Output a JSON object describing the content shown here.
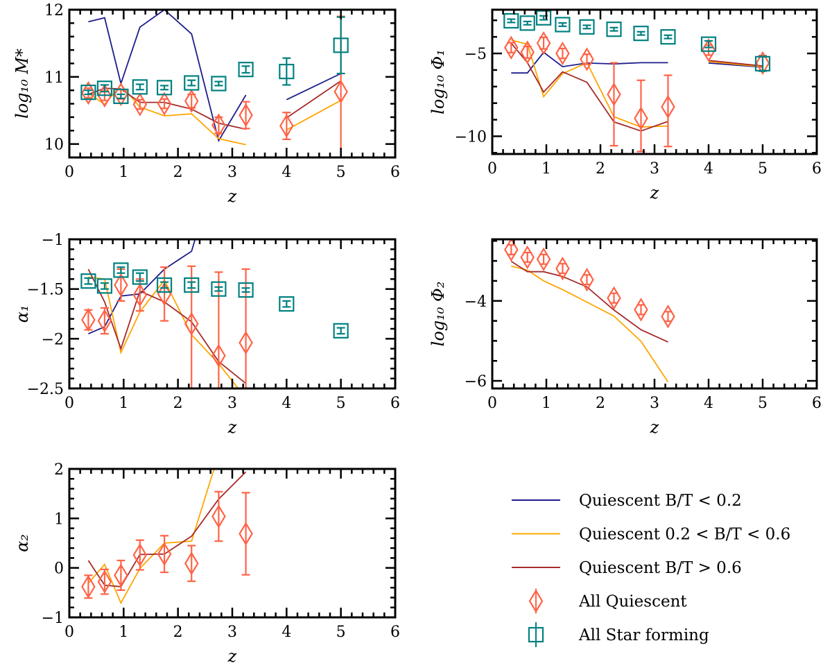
{
  "chart_data": [
    {
      "type": "line",
      "xlabel": "z",
      "ylabel": "log₁₀ M*",
      "xlim": [
        0,
        6
      ],
      "ylim": [
        9.8,
        12.0
      ],
      "xticks": [
        0,
        1,
        2,
        3,
        4,
        5,
        6
      ],
      "yticks": [
        10,
        11,
        12
      ],
      "x_minor_step": 0.2,
      "y_minor_step": 0.2,
      "lines": [
        {
          "series": "q_bt_low",
          "x": [
            0.35,
            0.65,
            0.95,
            1.3,
            1.75,
            2.25,
            2.75,
            3.25,
            null,
            4,
            5
          ],
          "y": [
            11.82,
            11.88,
            10.9,
            11.74,
            12.0,
            11.64,
            10.05,
            10.73,
            null,
            10.66,
            11.05
          ]
        },
        {
          "series": "q_bt_mid",
          "x": [
            0.35,
            0.65,
            0.95,
            1.3,
            1.75,
            2.25,
            2.75,
            3.25,
            null,
            4,
            5
          ],
          "y": [
            10.76,
            10.59,
            10.88,
            10.55,
            10.42,
            10.45,
            10.08,
            9.99,
            null,
            10.21,
            10.65
          ]
        },
        {
          "series": "q_bt_high",
          "x": [
            0.35,
            0.65,
            0.95,
            1.3,
            1.75,
            2.25,
            2.75,
            3.25,
            null,
            4,
            5
          ],
          "y": [
            10.74,
            10.83,
            10.82,
            10.62,
            10.62,
            10.52,
            10.31,
            10.22,
            null,
            10.39,
            10.94
          ]
        }
      ],
      "points": [
        {
          "series": "all_q",
          "x": [
            0.35,
            0.65,
            0.95,
            1.3,
            1.75,
            2.25,
            2.75,
            3.25,
            4,
            5
          ],
          "y": [
            10.76,
            10.72,
            10.74,
            10.59,
            10.6,
            10.64,
            10.28,
            10.43,
            10.27,
            10.78
          ],
          "yerr": [
            0.07,
            0.07,
            0.07,
            0.07,
            0.07,
            0.1,
            0.12,
            0.2,
            0.2,
            [
              1.2,
              1.12
            ]
          ]
        },
        {
          "series": "all_sf",
          "x": [
            0.35,
            0.65,
            0.95,
            1.3,
            1.75,
            2.25,
            2.75,
            3.25,
            4,
            5
          ],
          "y": [
            10.77,
            10.83,
            10.71,
            10.85,
            10.84,
            10.91,
            10.9,
            11.11,
            11.08,
            11.47
          ],
          "yerr": [
            0.03,
            0.05,
            0.03,
            0.04,
            0.03,
            0.04,
            0.03,
            0.05,
            0.2,
            0.42
          ]
        }
      ]
    },
    {
      "type": "line",
      "xlabel": "z",
      "ylabel": "log₁₀ Φ₁",
      "xlim": [
        0,
        6
      ],
      "ylim": [
        -11.07,
        -2.36
      ],
      "xticks": [
        0,
        1,
        2,
        3,
        4,
        5,
        6
      ],
      "yticks": [
        -10,
        -5
      ],
      "x_minor_step": 0.2,
      "y_minor_step": 1,
      "lines": [
        {
          "series": "q_bt_low",
          "x": [
            0.35,
            0.65,
            0.95,
            1.3,
            1.75,
            2.25,
            2.75,
            3.25,
            null,
            4,
            5
          ],
          "y": [
            -6.18,
            -6.18,
            -4.93,
            -5.8,
            -5.58,
            -5.63,
            -5.56,
            -5.56,
            null,
            -5.58,
            -5.83
          ]
        },
        {
          "series": "q_bt_mid",
          "x": [
            0.35,
            0.65,
            0.95,
            1.3,
            1.75,
            2.25,
            2.75,
            3.25,
            null,
            4,
            5
          ],
          "y": [
            -4.19,
            -4.44,
            -7.61,
            -6.22,
            -5.56,
            -8.82,
            -9.44,
            -9.38,
            null,
            -5.49,
            -5.81
          ]
        },
        {
          "series": "q_bt_high",
          "x": [
            0.35,
            0.65,
            0.95,
            1.3,
            1.75,
            2.25,
            2.75,
            3.25,
            null,
            4,
            5
          ],
          "y": [
            -4.38,
            -5.56,
            -7.33,
            -6.11,
            -6.74,
            -9.13,
            -9.68,
            -9.1,
            null,
            -5.42,
            -5.76
          ]
        }
      ],
      "points": [
        {
          "series": "all_q",
          "x": [
            0.35,
            0.65,
            0.95,
            1.3,
            1.75,
            2.25,
            2.75,
            3.25,
            4,
            5
          ],
          "y": [
            -4.65,
            -4.93,
            -4.38,
            -5.0,
            -5.35,
            -7.47,
            -8.92,
            -8.22,
            -4.8,
            -5.58
          ],
          "yerr": [
            0.3,
            0.35,
            0.35,
            0.3,
            0.3,
            [
              3.1,
              1.9
            ],
            [
              2.0,
              2.3
            ],
            [
              2.4,
              1.9
            ],
            0.3,
            0.45
          ]
        },
        {
          "series": "all_sf",
          "x": [
            0.35,
            0.65,
            0.95,
            1.3,
            1.75,
            2.25,
            2.75,
            3.25,
            4,
            5
          ],
          "y": [
            -3.03,
            -3.17,
            -2.85,
            -3.26,
            -3.4,
            -3.54,
            -3.79,
            -4.0,
            -4.44,
            -5.62
          ],
          "yerr": [
            0.1,
            0.1,
            0.12,
            0.1,
            0.1,
            0.1,
            0.1,
            0.1,
            0.2,
            0.45
          ]
        }
      ]
    },
    {
      "type": "line",
      "xlabel": "z",
      "ylabel": "α₁",
      "xlim": [
        0,
        6
      ],
      "ylim": [
        -2.5,
        -1.0
      ],
      "xticks": [
        0,
        1,
        2,
        3,
        4,
        5,
        6
      ],
      "yticks": [
        -2.5,
        -2.0,
        -1.5,
        -1.0
      ],
      "x_minor_step": 0.2,
      "y_minor_step": 0.1,
      "lines": [
        {
          "series": "q_bt_low",
          "x": [
            0.35,
            0.65,
            0.95,
            1.3,
            1.75,
            2.25,
            2.75
          ],
          "y": [
            -1.95,
            -1.88,
            -1.57,
            -1.55,
            -1.3,
            -1.12,
            -0.2
          ]
        },
        {
          "series": "q_bt_mid",
          "x": [
            0.35,
            0.65,
            0.95,
            1.3,
            1.75,
            2.25,
            2.75,
            3.25
          ],
          "y": [
            -1.38,
            -1.4,
            -2.14,
            -1.73,
            -1.41,
            -1.96,
            -2.25,
            -2.6
          ]
        },
        {
          "series": "q_bt_high",
          "x": [
            0.35,
            0.65,
            0.95,
            1.3,
            1.75,
            2.25,
            2.75,
            3.25
          ],
          "y": [
            -1.3,
            -1.63,
            -2.1,
            -1.52,
            -1.63,
            -1.83,
            -2.23,
            -2.45
          ]
        }
      ],
      "points": [
        {
          "series": "all_q",
          "x": [
            0.35,
            0.65,
            0.95,
            1.3,
            1.75,
            2.25,
            2.75,
            3.25
          ],
          "y": [
            -1.81,
            -1.82,
            -1.46,
            -1.56,
            -1.55,
            -1.85,
            -2.17,
            -2.04
          ],
          "yerr": [
            0.1,
            0.13,
            0.16,
            0.16,
            0.27,
            [
              1.0,
              0.58
            ],
            [
              1.0,
              0.84
            ],
            [
              1.0,
              0.74
            ]
          ]
        },
        {
          "series": "all_sf",
          "x": [
            0.35,
            0.65,
            0.95,
            1.3,
            1.75,
            2.25,
            2.75,
            3.25,
            4,
            5
          ],
          "y": [
            -1.42,
            -1.47,
            -1.31,
            -1.38,
            -1.46,
            -1.46,
            -1.5,
            -1.51,
            -1.65,
            -1.92
          ],
          "yerr": [
            0.03,
            0.03,
            0.03,
            0.04,
            0.03,
            0.03,
            0.02,
            0.02,
            0.03,
            0.03
          ]
        }
      ]
    },
    {
      "type": "line",
      "xlabel": "z",
      "ylabel": "log₁₀ Φ₂",
      "xlim": [
        0,
        6
      ],
      "ylim": [
        -6.19,
        -2.46
      ],
      "xticks": [
        0,
        1,
        2,
        3,
        4,
        5,
        6
      ],
      "yticks": [
        -6,
        -4
      ],
      "x_minor_step": 0.2,
      "y_minor_step": 0.5,
      "lines": [
        {
          "series": "q_bt_mid",
          "x": [
            0.35,
            0.65,
            0.95,
            1.3,
            1.75,
            2.25,
            2.75,
            3.25
          ],
          "y": [
            -3.13,
            -3.23,
            -3.5,
            -3.72,
            -4.03,
            -4.38,
            -5.01,
            -6.03
          ]
        },
        {
          "series": "q_bt_high",
          "x": [
            0.35,
            0.65,
            0.95,
            1.3,
            1.75,
            2.25,
            2.75,
            3.25
          ],
          "y": [
            -3.01,
            -3.27,
            -3.27,
            -3.39,
            -3.65,
            -4.23,
            -4.72,
            -5.03
          ]
        }
      ],
      "points": [
        {
          "series": "all_q",
          "x": [
            0.35,
            0.65,
            0.95,
            1.3,
            1.75,
            2.25,
            2.75,
            3.25
          ],
          "y": [
            -2.72,
            -2.91,
            -2.96,
            -3.19,
            -3.47,
            -3.93,
            -4.22,
            -4.39
          ],
          "yerr": [
            0.12,
            0.12,
            0.12,
            0.12,
            0.12,
            0.12,
            0.12,
            0.12
          ]
        }
      ]
    },
    {
      "type": "line",
      "xlabel": "z",
      "ylabel": "α₂",
      "xlim": [
        0,
        6
      ],
      "ylim": [
        -1,
        2
      ],
      "xticks": [
        0,
        1,
        2,
        3,
        4,
        5,
        6
      ],
      "yticks": [
        -1,
        0,
        1,
        2
      ],
      "x_minor_step": 0.2,
      "y_minor_step": 0.2,
      "lines": [
        {
          "series": "q_bt_mid",
          "x": [
            0.35,
            0.65,
            0.95,
            1.3,
            1.75,
            2.25,
            2.75
          ],
          "y": [
            -0.31,
            0.07,
            -0.71,
            -0.01,
            0.5,
            0.54,
            2.3
          ]
        },
        {
          "series": "q_bt_high",
          "x": [
            0.35,
            0.65,
            0.95,
            1.3,
            1.75,
            2.25,
            2.75,
            3.25
          ],
          "y": [
            0.15,
            -0.35,
            -0.38,
            0.27,
            0.28,
            0.64,
            1.39,
            1.94
          ]
        }
      ],
      "points": [
        {
          "series": "all_q",
          "x": [
            0.35,
            0.65,
            0.95,
            1.3,
            1.75,
            2.25,
            2.75,
            3.25
          ],
          "y": [
            -0.38,
            -0.28,
            -0.15,
            0.26,
            0.28,
            0.09,
            1.04,
            0.69
          ],
          "yerr": [
            0.23,
            0.25,
            0.3,
            0.3,
            0.37,
            0.36,
            0.5,
            0.83
          ]
        }
      ]
    }
  ],
  "legend": {
    "placement": "bottom-right",
    "entries": [
      {
        "id": "q_bt_low",
        "label": "Quiescent B/T < 0.2",
        "kind": "line",
        "color": "#1c1c8c"
      },
      {
        "id": "q_bt_mid",
        "label": "Quiescent 0.2 < B/T < 0.6",
        "kind": "line",
        "color": "#ffa500"
      },
      {
        "id": "q_bt_high",
        "label": "Quiescent B/T > 0.6",
        "kind": "line",
        "color": "#a52a2a"
      },
      {
        "id": "all_q",
        "label": "All Quiescent",
        "kind": "diamond",
        "color": "#ff6347"
      },
      {
        "id": "all_sf",
        "label": "All Star forming",
        "kind": "square",
        "color": "#008080"
      }
    ]
  }
}
